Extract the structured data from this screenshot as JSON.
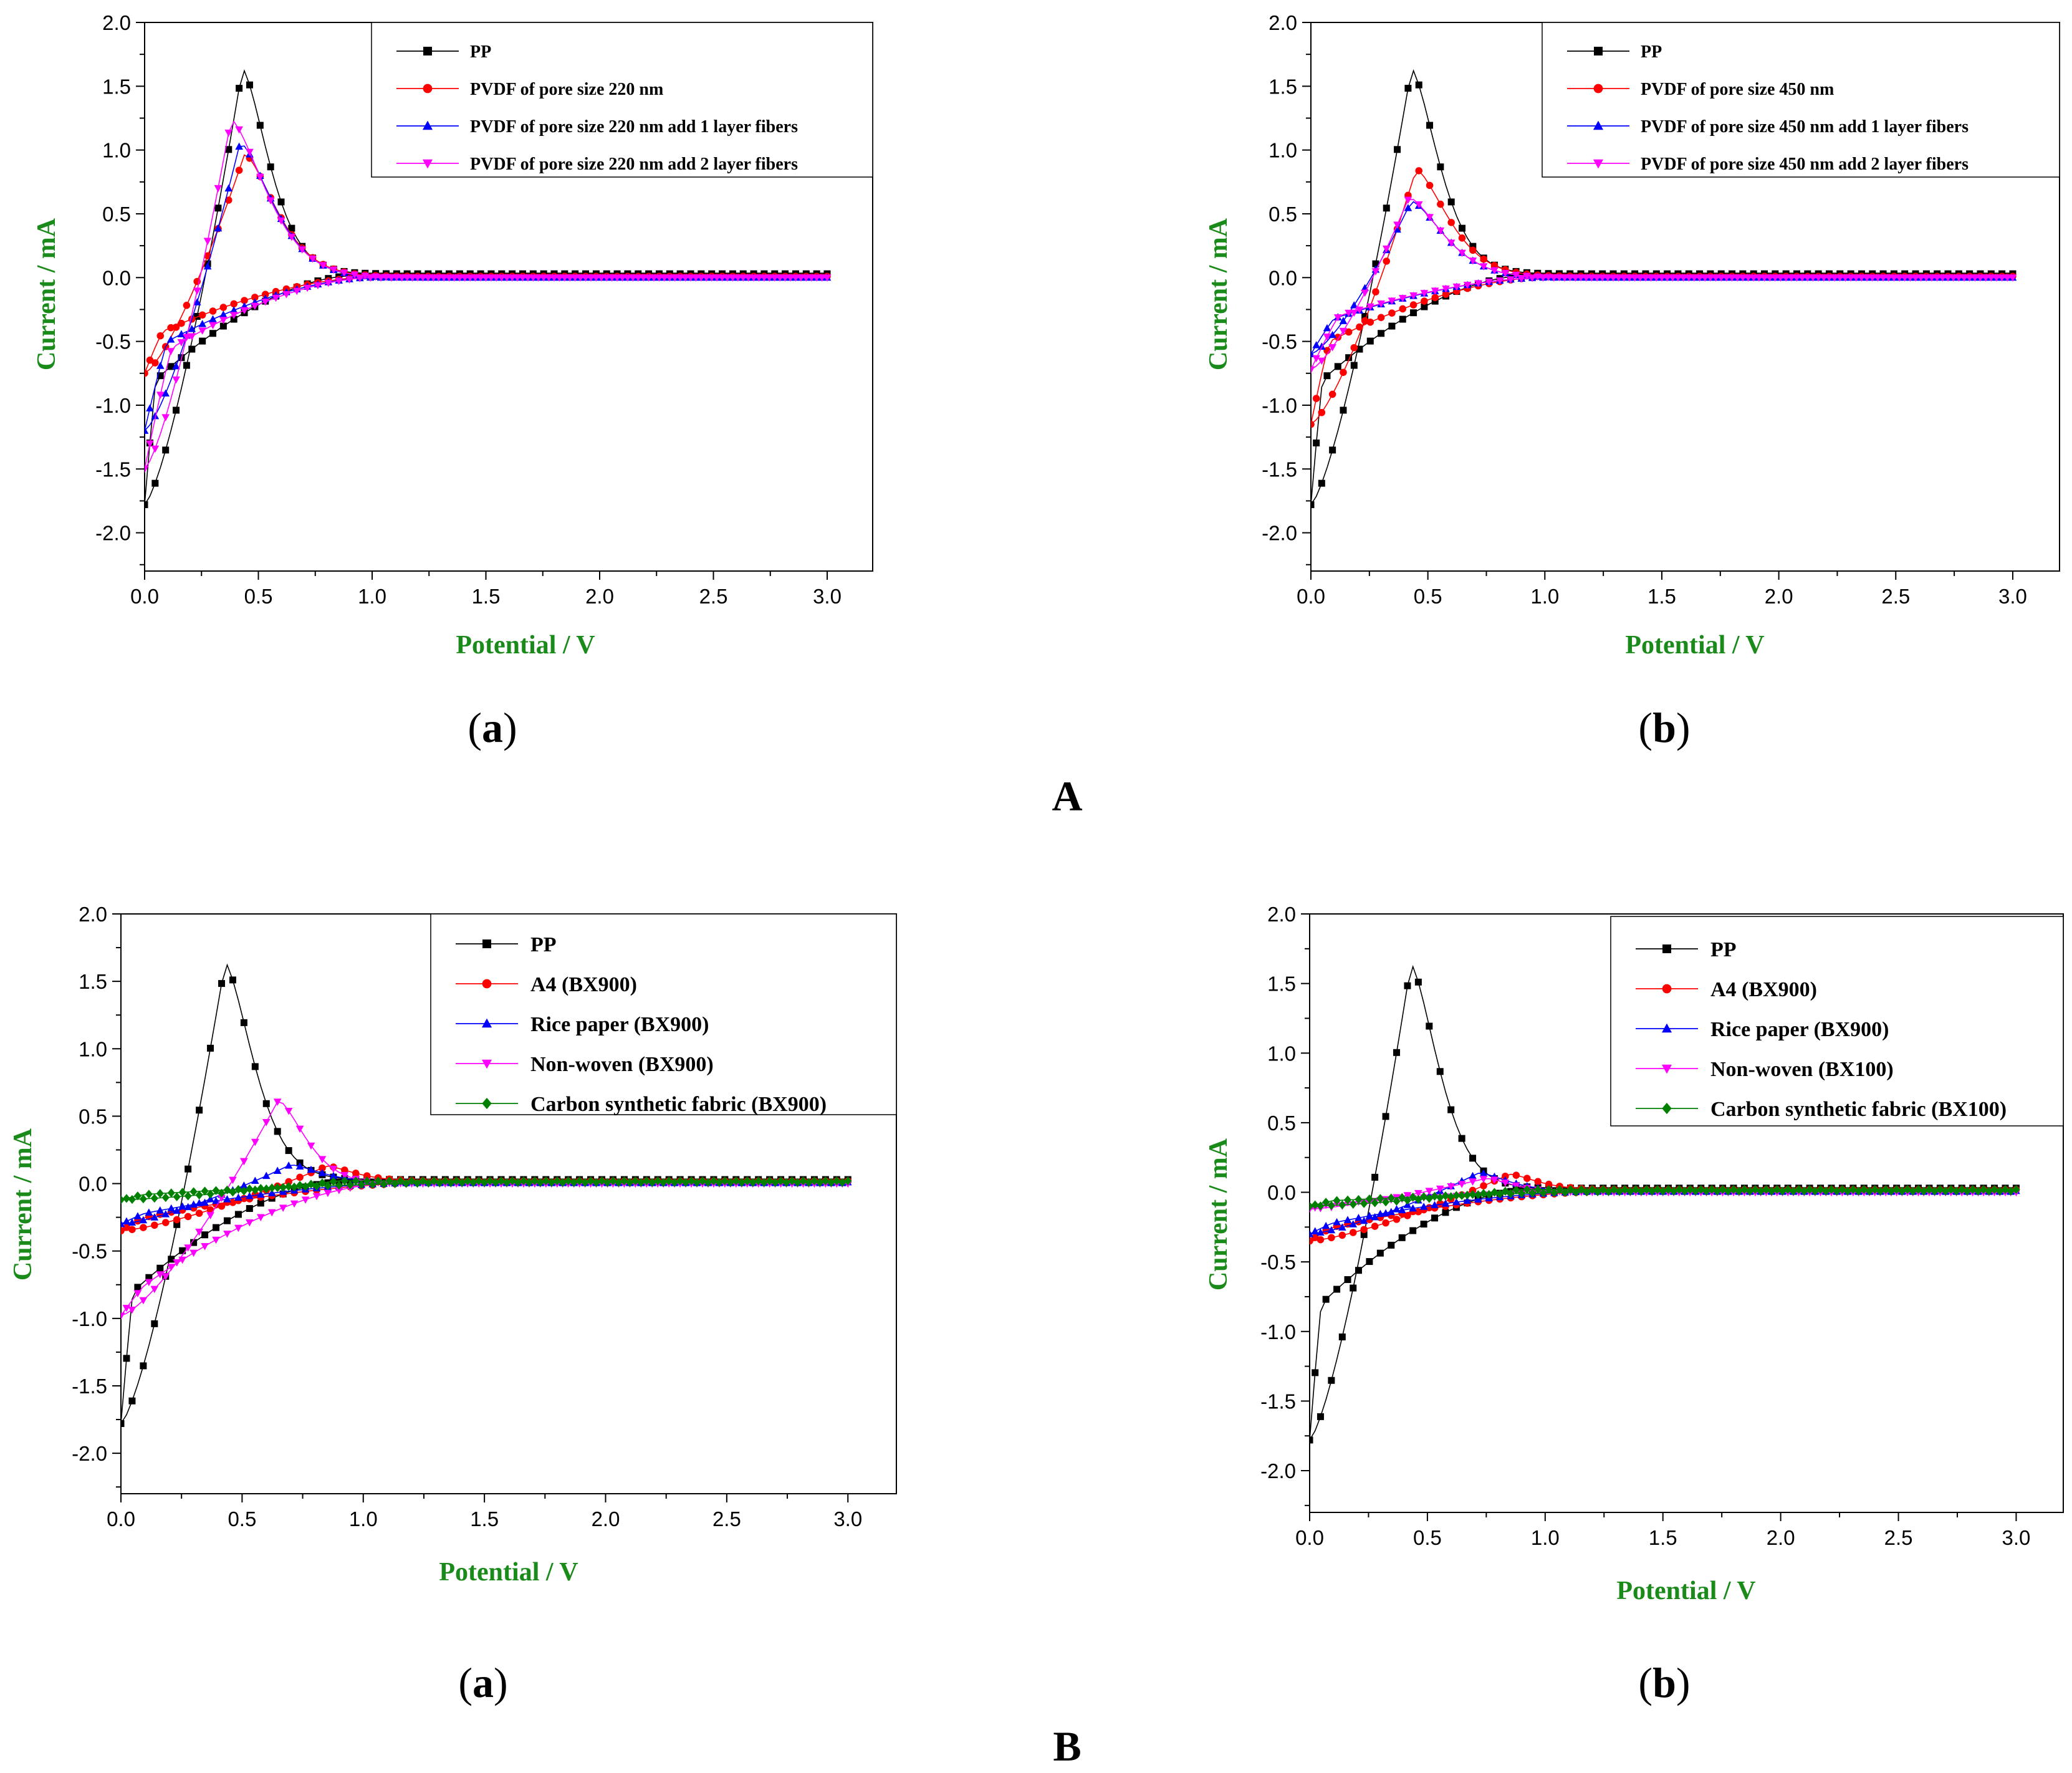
{
  "figure": {
    "group_labels": [
      "A",
      "B"
    ],
    "panel_labels": [
      "a",
      "b",
      "a",
      "b"
    ]
  },
  "colors": {
    "PP": "#000000",
    "red": "#ff0000",
    "blue": "#0000ff",
    "magenta": "#ff00ff",
    "green": "#008000",
    "axis_label": "#1a8a1a"
  },
  "chart_data": [
    {
      "type": "line",
      "panel": "a",
      "group": "A",
      "xlabel": "Potential / V",
      "ylabel": "Current / mA",
      "xlim": [
        0,
        3.2
      ],
      "ylim": [
        -2.3,
        2.0
      ],
      "xticks": [
        "0.0",
        "0.5",
        "1.0",
        "1.5",
        "2.0",
        "2.5",
        "3.0"
      ],
      "yticks": [
        "-2.0",
        "-1.5",
        "-1.0",
        "-0.5",
        "0.0",
        "0.5",
        "1.0",
        "1.5",
        "2.0"
      ],
      "legend_position": "top-right",
      "series": [
        {
          "name": "PP",
          "color": "#000000",
          "marker": "square",
          "vertex": [
            0.0,
            -1.78
          ],
          "peak": [
            0.43,
            1.64
          ],
          "ret": [
            0.05,
            -0.8
          ],
          "ret_x": 0.9,
          "tail": 0.03
        },
        {
          "name": "PVDF of pore size 220 nm",
          "color": "#ff0000",
          "marker": "circle",
          "vertex": [
            0.0,
            -0.75
          ],
          "peak": [
            0.44,
            0.97
          ],
          "ret": [
            0.08,
            -0.42
          ],
          "ret_x": 1.0,
          "tail": 0.01
        },
        {
          "name": "PVDF of pore size 220 nm add 1 layer fibers",
          "color": "#0000ff",
          "marker": "triangle-up",
          "vertex": [
            0.0,
            -1.2
          ],
          "peak": [
            0.42,
            1.06
          ],
          "ret": [
            0.1,
            -0.5
          ],
          "ret_x": 1.0,
          "tail": 0.0
        },
        {
          "name": "PVDF of pore size 220 nm add 2 layer fibers",
          "color": "#ff00ff",
          "marker": "triangle-down",
          "vertex": [
            0.0,
            -1.5
          ],
          "peak": [
            0.38,
            1.24
          ],
          "ret": [
            0.12,
            -0.55
          ],
          "ret_x": 1.0,
          "tail": 0.0
        }
      ]
    },
    {
      "type": "line",
      "panel": "b",
      "group": "A",
      "xlabel": "Potential / V",
      "ylabel": "Current / mA",
      "xlim": [
        0,
        3.2
      ],
      "ylim": [
        -2.3,
        2.0
      ],
      "xticks": [
        "0.0",
        "0.5",
        "1.0",
        "1.5",
        "2.0",
        "2.5",
        "3.0"
      ],
      "yticks": [
        "-2.0",
        "-1.5",
        "-1.0",
        "-0.5",
        "0.0",
        "0.5",
        "1.0",
        "1.5",
        "2.0"
      ],
      "legend_position": "top-right",
      "series": [
        {
          "name": "PP",
          "color": "#000000",
          "marker": "square",
          "vertex": [
            0.0,
            -1.78
          ],
          "peak": [
            0.43,
            1.64
          ],
          "ret": [
            0.05,
            -0.8
          ],
          "ret_x": 0.9,
          "tail": 0.03
        },
        {
          "name": "PVDF of pore size 450 nm",
          "color": "#ff0000",
          "marker": "circle",
          "vertex": [
            0.0,
            -1.15
          ],
          "peak": [
            0.45,
            0.85
          ],
          "ret": [
            0.08,
            -0.5
          ],
          "ret_x": 1.0,
          "tail": 0.01
        },
        {
          "name": "PVDF of pore size 450 nm add 1 layer fibers",
          "color": "#0000ff",
          "marker": "triangle-up",
          "vertex": [
            0.0,
            -0.6
          ],
          "peak": [
            0.43,
            0.6
          ],
          "ret": [
            0.1,
            -0.32
          ],
          "ret_x": 1.0,
          "tail": 0.0
        },
        {
          "name": "PVDF of pore size 450 nm add 2 layer fibers",
          "color": "#ff00ff",
          "marker": "triangle-down",
          "vertex": [
            0.0,
            -0.72
          ],
          "peak": [
            0.42,
            0.63
          ],
          "ret": [
            0.12,
            -0.3
          ],
          "ret_x": 1.0,
          "tail": 0.0
        }
      ]
    },
    {
      "type": "line",
      "panel": "a",
      "group": "B",
      "xlabel": "Potential / V",
      "ylabel": "Current / mA",
      "xlim": [
        0,
        3.2
      ],
      "ylim": [
        -2.3,
        2.0
      ],
      "xticks": [
        "0.0",
        "0.5",
        "1.0",
        "1.5",
        "2.0",
        "2.5",
        "3.0"
      ],
      "yticks": [
        "-2.0",
        "-1.5",
        "-1.0",
        "-0.5",
        "0.0",
        "0.5",
        "1.0",
        "1.5",
        "2.0"
      ],
      "legend_position": "top-right",
      "series": [
        {
          "name": "PP",
          "color": "#000000",
          "marker": "square",
          "vertex": [
            0.0,
            -1.78
          ],
          "peak": [
            0.43,
            1.64
          ],
          "ret": [
            0.05,
            -0.8
          ],
          "ret_x": 0.9,
          "tail": 0.03
        },
        {
          "name": "A4 (BX900)",
          "color": "#ff0000",
          "marker": "circle",
          "vertex": [
            0.0,
            -0.35
          ],
          "peak": [
            0.85,
            0.13
          ],
          "ret": [
            0.1,
            -0.25
          ],
          "ret_x": 1.3,
          "tail": 0.02
        },
        {
          "name": "Rice paper (BX900)",
          "color": "#0000ff",
          "marker": "triangle-up",
          "vertex": [
            0.0,
            -0.3
          ],
          "peak": [
            0.7,
            0.14
          ],
          "ret": [
            0.1,
            -0.22
          ],
          "ret_x": 1.2,
          "tail": 0.01
        },
        {
          "name": "Non-woven (BX900)",
          "color": "#ff00ff",
          "marker": "triangle-down",
          "vertex": [
            0.0,
            -0.98
          ],
          "peak": [
            0.65,
            0.62
          ],
          "ret": [
            0.1,
            -0.75
          ],
          "ret_x": 1.1,
          "tail": 0.0
        },
        {
          "name": "Carbon synthetic fabric (BX900)",
          "color": "#008000",
          "marker": "diamond",
          "vertex": [
            0.0,
            -0.12
          ],
          "peak": [
            0.9,
            0.02
          ],
          "ret": [
            0.1,
            -0.08
          ],
          "ret_x": 1.5,
          "tail": 0.02
        }
      ]
    },
    {
      "type": "line",
      "panel": "b",
      "group": "B",
      "xlabel": "Potential / V",
      "ylabel": "Current / mA",
      "xlim": [
        0,
        3.2
      ],
      "ylim": [
        -2.3,
        2.0
      ],
      "xticks": [
        "0.0",
        "0.5",
        "1.0",
        "1.5",
        "2.0",
        "2.5",
        "3.0"
      ],
      "yticks": [
        "-2.0",
        "-1.5",
        "-1.0",
        "-0.5",
        "0.0",
        "0.5",
        "1.0",
        "1.5",
        "2.0"
      ],
      "legend_position": "top-right",
      "series": [
        {
          "name": "PP",
          "color": "#000000",
          "marker": "square",
          "vertex": [
            0.0,
            -1.78
          ],
          "peak": [
            0.43,
            1.64
          ],
          "ret": [
            0.05,
            -0.8
          ],
          "ret_x": 0.9,
          "tail": 0.03
        },
        {
          "name": "A4 (BX900)",
          "color": "#ff0000",
          "marker": "circle",
          "vertex": [
            0.0,
            -0.35
          ],
          "peak": [
            0.85,
            0.13
          ],
          "ret": [
            0.1,
            -0.25
          ],
          "ret_x": 1.3,
          "tail": 0.02
        },
        {
          "name": "Rice paper (BX900)",
          "color": "#0000ff",
          "marker": "triangle-up",
          "vertex": [
            0.0,
            -0.3
          ],
          "peak": [
            0.72,
            0.14
          ],
          "ret": [
            0.1,
            -0.22
          ],
          "ret_x": 1.2,
          "tail": 0.01
        },
        {
          "name": "Non-woven (BX100)",
          "color": "#ff00ff",
          "marker": "triangle-down",
          "vertex": [
            0.0,
            -0.12
          ],
          "peak": [
            0.75,
            0.1
          ],
          "ret": [
            0.1,
            -0.08
          ],
          "ret_x": 1.2,
          "tail": 0.0
        },
        {
          "name": "Carbon synthetic fabric (BX100)",
          "color": "#008000",
          "marker": "diamond",
          "vertex": [
            0.0,
            -0.1
          ],
          "peak": [
            0.9,
            0.02
          ],
          "ret": [
            0.1,
            -0.06
          ],
          "ret_x": 1.5,
          "tail": 0.02
        }
      ]
    }
  ]
}
